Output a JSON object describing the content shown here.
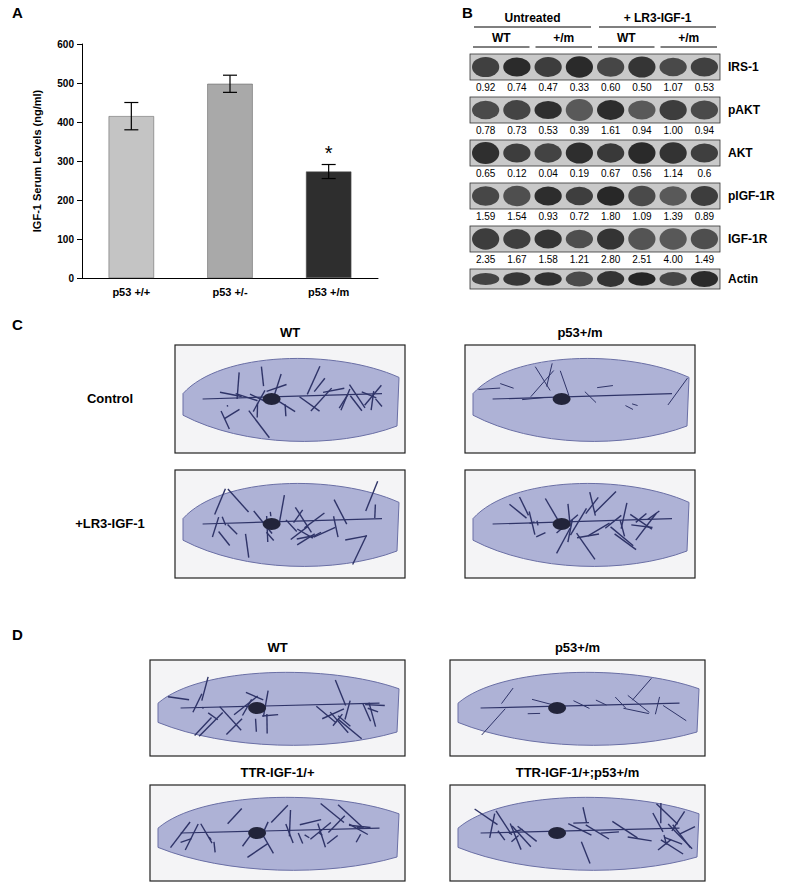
{
  "panel_labels": [
    "A",
    "B",
    "C",
    "D"
  ],
  "chart_data": {
    "type": "bar",
    "y_label": "IGF-1 Serum Levels (ng/ml)",
    "categories": [
      "p53 +/+",
      "p53 +/-",
      "p53 +/m"
    ],
    "values": [
      415,
      498,
      273
    ],
    "errors": [
      35,
      22,
      18
    ],
    "colors": [
      "#c4c4c4",
      "#a9a9a9",
      "#2e2e2e"
    ],
    "ylim": [
      0,
      600
    ],
    "yticks": [
      0,
      100,
      200,
      300,
      400,
      500,
      600
    ],
    "grid": false,
    "annotations": [
      {
        "category": "p53 +/m",
        "text": "*"
      }
    ]
  },
  "blot": {
    "treatments": [
      "Untreated",
      "+ LR3-IGF-1"
    ],
    "genotypes": [
      "WT",
      "+/m",
      "WT",
      "+/m"
    ],
    "rows": [
      {
        "name": "IRS-1",
        "values": [
          "0.92",
          "0.74",
          "0.47",
          "0.33",
          "0.60",
          "0.50",
          "1.07",
          "0.53"
        ]
      },
      {
        "name": "pAKT",
        "values": [
          "0.78",
          "0.73",
          "0.53",
          "0.39",
          "1.61",
          "0.94",
          "1.00",
          "0.94"
        ]
      },
      {
        "name": "AKT",
        "values": [
          "0.65",
          "0.12",
          "0.04",
          "0.19",
          "0.67",
          "0.56",
          "1.14",
          "0.6"
        ]
      },
      {
        "name": "pIGF-1R",
        "values": [
          "1.59",
          "1.54",
          "0.93",
          "0.72",
          "1.80",
          "1.09",
          "1.39",
          "0.89"
        ]
      },
      {
        "name": "IGF-1R",
        "values": [
          "2.35",
          "1.67",
          "1.58",
          "1.21",
          "2.80",
          "2.51",
          "4.00",
          "1.49"
        ]
      },
      {
        "name": "Actin",
        "values": []
      }
    ]
  },
  "panel_c": {
    "columns": [
      "WT",
      "p53+/m"
    ],
    "rows": [
      "Control",
      "+LR3-IGF-1"
    ]
  },
  "panel_d": {
    "images": [
      "WT",
      "p53+/m",
      "TTR-IGF-1/+",
      "TTR-IGF-1/+;p53+/m"
    ]
  }
}
